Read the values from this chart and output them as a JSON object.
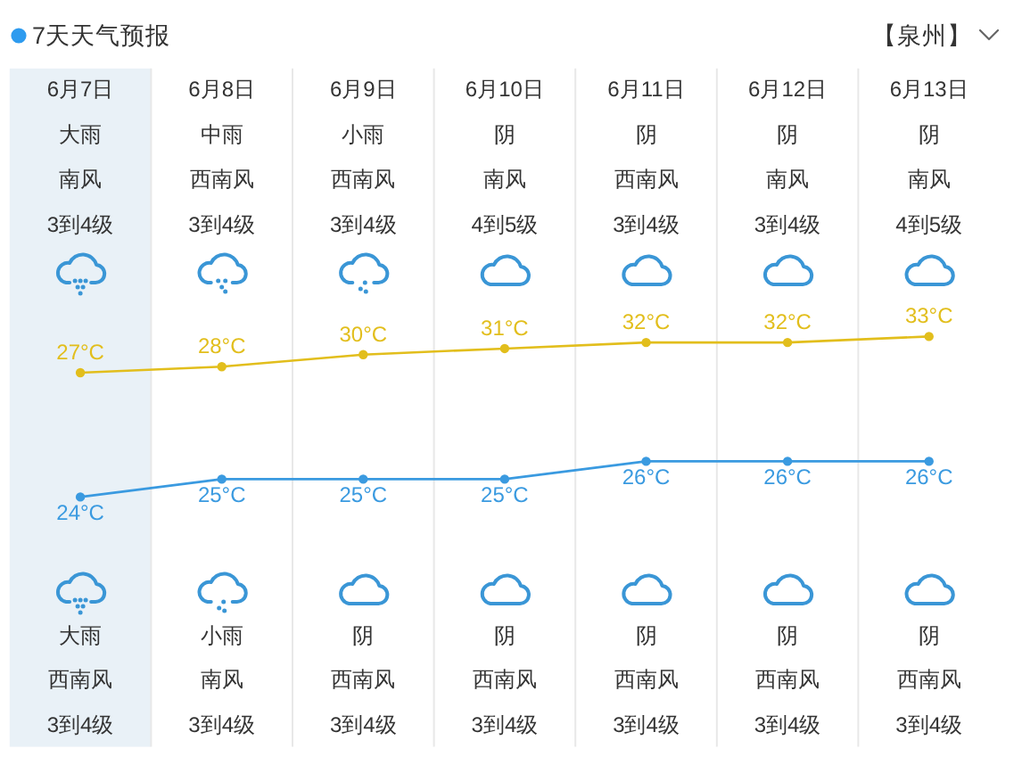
{
  "chart_data": [
    {
      "type": "line",
      "title": "7天天气预报",
      "subtitle": "【泉州】",
      "categories": [
        "6月7日",
        "6月8日",
        "6月9日",
        "6月10日",
        "6月11日",
        "6月12日",
        "6月13日"
      ],
      "series": [
        {
          "color": "#e2be1c",
          "values": [
            27,
            28,
            30,
            31,
            32,
            32,
            33
          ],
          "value_labels": [
            "27°C",
            "28°C",
            "30°C",
            "31°C",
            "32°C",
            "32°C",
            "33°C"
          ]
        }
      ],
      "marker": "circle",
      "grid": "x",
      "tick_labels": "x",
      "bands": [
        {
          "axis": "x",
          "from": "6月7日",
          "to": "6月7日",
          "color": "#e9f1f7"
        }
      ],
      "annotations": [
        "大雨",
        "中雨",
        "小雨",
        "阴",
        "阴",
        "阴",
        "阴",
        "南风",
        "西南风",
        "西南风",
        "南风",
        "西南风",
        "南风",
        "南风",
        "3到4级",
        "3到4级",
        "3到4级",
        "4到5级",
        "3到4级",
        "3到4级",
        "4到5级"
      ]
    },
    {
      "type": "line",
      "categories": [
        null,
        null,
        null,
        null,
        null,
        null,
        null
      ],
      "series": [
        {
          "color": "#3a9ae0",
          "values": [
            24,
            25,
            25,
            25,
            26,
            26,
            26
          ],
          "value_labels": [
            "24°C",
            "25°C",
            "25°C",
            "25°C",
            "26°C",
            "26°C",
            "26°C"
          ]
        }
      ],
      "marker": "circle",
      "tick_labels": false,
      "annotations": [
        "大雨",
        "小雨",
        "阴",
        "阴",
        "阴",
        "阴",
        "阴",
        "西南风",
        "南风",
        "西南风",
        "西南风",
        "西南风",
        "西南风",
        "西南风",
        "3到4级",
        "3到4级",
        "3到4级",
        "3到4级",
        "3到4级",
        "3到4级",
        "3到4级"
      ]
    }
  ]
}
